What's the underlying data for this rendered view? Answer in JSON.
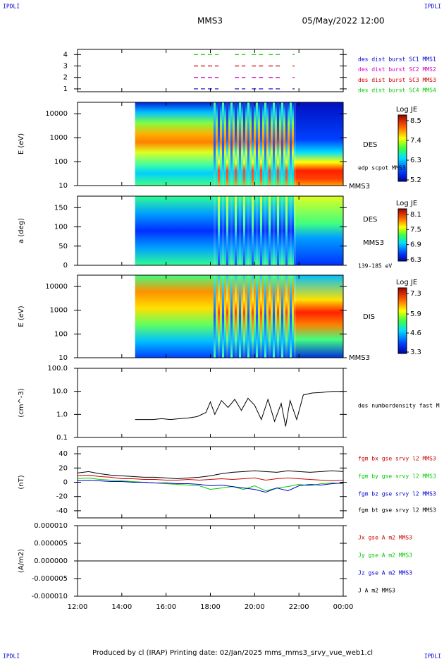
{
  "header": {
    "logo_left": "IPDLI",
    "logo_right": "IPDLI",
    "spacecraft": "MMS3",
    "date": "05/May/2022 12:00"
  },
  "footer": {
    "logo_left": "IPDLI",
    "logo_right": "IPDLI",
    "credits": "Produced by cl (IRAP)   Printing date: 02/Jan/2025   mms_mms3_srvy_vue_web1.cl"
  },
  "time_axis": {
    "xlim": [
      12,
      24
    ],
    "xticks": [
      {
        "value": 12,
        "label": "12:00"
      },
      {
        "value": 14,
        "label": "14:00"
      },
      {
        "value": 16,
        "label": "16:00"
      },
      {
        "value": 18,
        "label": "18:00"
      },
      {
        "value": 20,
        "label": "20:00"
      },
      {
        "value": 22,
        "label": "22:00"
      },
      {
        "value": 24,
        "label": "00:00"
      }
    ]
  },
  "chart_data": [
    {
      "type": "timeline",
      "ylim": [
        0.75,
        4.45
      ],
      "yticks": [
        1,
        2,
        3,
        4
      ],
      "series": [
        {
          "name": "des dist burst SC1 MMS1",
          "color": "#0000cc",
          "y": 1,
          "intervals": [
            [
              17.25,
              18.37
            ],
            [
              19.1,
              19.58
            ],
            [
              19.87,
              20.5
            ],
            [
              20.63,
              21.2
            ],
            [
              21.71,
              21.8
            ]
          ]
        },
        {
          "name": "des dist burst SC2 MMS2",
          "color": "#cc00cc",
          "y": 2,
          "intervals": [
            [
              17.25,
              18.37
            ],
            [
              19.1,
              19.58
            ],
            [
              19.87,
              20.5
            ],
            [
              20.63,
              21.2
            ],
            [
              21.71,
              21.8
            ]
          ]
        },
        {
          "name": "des dist burst SC3 MMS3",
          "color": "#cc0000",
          "y": 3,
          "intervals": [
            [
              17.25,
              18.37
            ],
            [
              19.1,
              19.58
            ],
            [
              19.87,
              20.5
            ],
            [
              20.63,
              21.2
            ],
            [
              21.71,
              21.8
            ]
          ]
        },
        {
          "name": "des dist burst SC4 MMS4",
          "color": "#00cc00",
          "y": 4,
          "intervals": [
            [
              17.25,
              18.37
            ],
            [
              19.1,
              19.58
            ],
            [
              19.87,
              20.5
            ],
            [
              20.63,
              21.2
            ],
            [
              21.71,
              21.8
            ]
          ]
        }
      ]
    },
    {
      "type": "spectrogram",
      "ylabel": "E (eV)",
      "log": true,
      "ylim": [
        10,
        30000
      ],
      "yticks": [
        10,
        100,
        1000,
        10000
      ],
      "start": 14.6,
      "colorbar": {
        "title": "Log JE",
        "lim": [
          5.2,
          8.5
        ],
        "ticks": [
          5.2,
          6.3,
          7.4,
          8.5
        ]
      },
      "labels": [
        "DES",
        "edp scpot MMS3",
        "MMS3"
      ]
    },
    {
      "type": "spectrogram",
      "ylabel": "a (deg)",
      "log": false,
      "ylim": [
        0,
        180
      ],
      "yticks": [
        0,
        50,
        100,
        150
      ],
      "start": 14.6,
      "colorbar": {
        "title": "Log JE",
        "lim": [
          6.3,
          8.1
        ],
        "ticks": [
          6.3,
          6.9,
          7.5,
          8.1
        ]
      },
      "labels": [
        "DES",
        "MMS3",
        "139-185 eV"
      ]
    },
    {
      "type": "spectrogram",
      "ylabel": "E (eV)",
      "log": true,
      "ylim": [
        10,
        30000
      ],
      "yticks": [
        10,
        100,
        1000,
        10000
      ],
      "start": 14.6,
      "colorbar": {
        "title": "Log JE",
        "lim": [
          3.3,
          7.3
        ],
        "ticks": [
          3.3,
          4.6,
          5.9,
          7.3
        ]
      },
      "labels": [
        "DIS",
        "MMS3"
      ]
    },
    {
      "type": "line",
      "ylabel": "(cm^-3)",
      "log": true,
      "ylim": [
        0.1,
        100
      ],
      "yticks": [
        {
          "value": 0.1,
          "label": "0.1"
        },
        {
          "value": 1,
          "label": "1.0"
        },
        {
          "value": 10,
          "label": "10.0"
        },
        {
          "value": 100,
          "label": "100.0"
        }
      ],
      "x": [
        14.6,
        15,
        15.4,
        15.8,
        16.2,
        16.6,
        17,
        17.4,
        17.8,
        18.0,
        18.2,
        18.5,
        18.8,
        19.1,
        19.4,
        19.7,
        20.0,
        20.3,
        20.6,
        20.9,
        21.2,
        21.4,
        21.6,
        21.9,
        22.2,
        22.6,
        23.0,
        23.5,
        24.0
      ],
      "series": [
        {
          "name": "des numberdensity fast M",
          "color": "#000000",
          "values": [
            0.6,
            0.6,
            0.6,
            0.65,
            0.6,
            0.65,
            0.7,
            0.8,
            1.2,
            3.5,
            1.0,
            4.0,
            2.0,
            4.5,
            1.5,
            5.0,
            2.5,
            0.6,
            4.5,
            0.5,
            3.0,
            0.3,
            4.0,
            0.6,
            7.0,
            8.5,
            9.0,
            10.0,
            10.0
          ]
        }
      ]
    },
    {
      "type": "line",
      "ylabel": "(nT)",
      "log": false,
      "ylim": [
        -50,
        50
      ],
      "yticks": [
        -40,
        -20,
        0,
        20,
        40
      ],
      "x": [
        12,
        12.5,
        13,
        13.5,
        14,
        14.5,
        15,
        15.5,
        16,
        16.5,
        17,
        17.5,
        18,
        18.5,
        19,
        19.5,
        20,
        20.5,
        21,
        21.5,
        22,
        22.5,
        23,
        23.5,
        24
      ],
      "series": [
        {
          "name": "fgm bx gse srvy l2 MMS3",
          "color": "#cc0000",
          "values": [
            9,
            10,
            8,
            7,
            5,
            5,
            4,
            4,
            3,
            3,
            4,
            3,
            4,
            5,
            4,
            5,
            6,
            3,
            5,
            6,
            5,
            4,
            3,
            2,
            3
          ]
        },
        {
          "name": "fgm by gse srvy l2 MMS3",
          "color": "#00cc00",
          "values": [
            5,
            6,
            4,
            3,
            2,
            1,
            0,
            -1,
            -2,
            -3,
            -4,
            -5,
            -10,
            -8,
            -6,
            -10,
            -5,
            -12,
            -8,
            -6,
            -3,
            -5,
            -2,
            -1,
            -2
          ]
        },
        {
          "name": "fgm bz gse srvy l2 MMS3",
          "color": "#0000cc",
          "values": [
            2,
            3,
            2,
            1,
            1,
            0,
            0,
            -1,
            -1,
            -2,
            -2,
            -3,
            -5,
            -4,
            -6,
            -8,
            -10,
            -14,
            -8,
            -12,
            -5,
            -3,
            -4,
            -2,
            -1
          ]
        },
        {
          "name": "fgm bt gse srvy l2 MMS3",
          "color": "#000000",
          "values": [
            13,
            15,
            12,
            10,
            9,
            8,
            7,
            7,
            6,
            5,
            6,
            7,
            9,
            12,
            14,
            15,
            16,
            15,
            14,
            16,
            15,
            14,
            15,
            16,
            15
          ]
        }
      ]
    },
    {
      "type": "line",
      "ylabel": "(A/m2)",
      "log": false,
      "ylim": [
        -1e-05,
        1e-05
      ],
      "yticks": [
        {
          "value": -1e-05,
          "label": "-0.000010"
        },
        {
          "value": -5e-06,
          "label": "-0.000005"
        },
        {
          "value": 0,
          "label": "0.000000"
        },
        {
          "value": 5e-06,
          "label": "0.000005"
        },
        {
          "value": 1e-05,
          "label": "0.000010"
        }
      ],
      "x": [
        12,
        24
      ],
      "series": [
        {
          "name": "Jx gse A m2 MMS3",
          "color": "#cc0000",
          "values": [
            0,
            0
          ]
        },
        {
          "name": "Jy gse A m2 MMS3",
          "color": "#00cc00",
          "values": [
            0,
            0
          ]
        },
        {
          "name": "Jz gse A m2 MMS3",
          "color": "#0000cc",
          "values": [
            0,
            0
          ]
        },
        {
          "name": "J A m2 MMS3",
          "color": "#000000",
          "values": [
            0,
            0
          ]
        }
      ]
    }
  ]
}
